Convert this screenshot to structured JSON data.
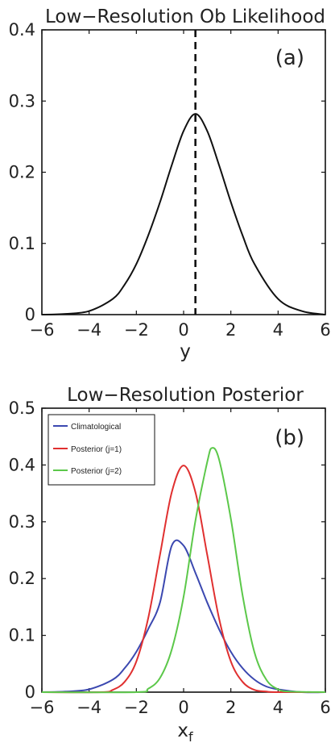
{
  "chart_data": [
    {
      "type": "line",
      "title": "Low−Resolution Ob Likelihood",
      "panel_label": "(a)",
      "xlabel": "y",
      "xlim": [
        -6,
        6
      ],
      "ylim": [
        0,
        0.4
      ],
      "x_ticks": [
        -6,
        -4,
        -2,
        0,
        2,
        4,
        6
      ],
      "y_ticks": [
        0,
        0.1,
        0.2,
        0.3,
        0.4
      ],
      "x_tick_labels": [
        "−6",
        "−4",
        "−2",
        "0",
        "2",
        "4",
        "6"
      ],
      "y_tick_labels": [
        "0",
        "0.1",
        "0.2",
        "0.3",
        "0.4"
      ],
      "grid": false,
      "series": [
        {
          "color": "#111111",
          "style": "solid",
          "x": [
            -6,
            -5,
            -4,
            -3,
            -2.5,
            -2,
            -1.5,
            -1,
            -0.5,
            0,
            0.5,
            1,
            1.5,
            2,
            2.5,
            3,
            4,
            5,
            6
          ],
          "y": [
            0,
            0.001,
            0.005,
            0.022,
            0.042,
            0.071,
            0.111,
            0.158,
            0.21,
            0.258,
            0.282,
            0.258,
            0.21,
            0.158,
            0.111,
            0.071,
            0.022,
            0.005,
            0
          ]
        }
      ],
      "vertical_line": {
        "x": 0.5,
        "color": "#111111",
        "style": "dashed"
      }
    },
    {
      "type": "line",
      "title": "Low−Resolution Posterior",
      "panel_label": "(b)",
      "xlabel": "x",
      "xlabel_sub": "f",
      "xlim": [
        -6,
        6
      ],
      "ylim": [
        0,
        0.5
      ],
      "x_ticks": [
        -6,
        -4,
        -2,
        0,
        2,
        4,
        6
      ],
      "y_ticks": [
        0,
        0.1,
        0.2,
        0.3,
        0.4,
        0.5
      ],
      "x_tick_labels": [
        "−6",
        "−4",
        "−2",
        "0",
        "2",
        "4",
        "6"
      ],
      "y_tick_labels": [
        "0",
        "0.1",
        "0.2",
        "0.3",
        "0.4",
        "0.5"
      ],
      "grid": false,
      "legend_position": "top-left",
      "series": [
        {
          "name": "Climatological",
          "color": "#3b48b0",
          "x": [
            -6,
            -5,
            -4,
            -3,
            -2.5,
            -2,
            -1.5,
            -1,
            -0.5,
            0,
            0.5,
            1,
            1.5,
            2,
            2.5,
            3,
            3.5,
            4,
            5,
            6
          ],
          "y": [
            0,
            0.001,
            0.005,
            0.022,
            0.042,
            0.071,
            0.111,
            0.158,
            0.258,
            0.258,
            0.21,
            0.158,
            0.111,
            0.071,
            0.042,
            0.022,
            0.01,
            0.005,
            0,
            0
          ]
        },
        {
          "name": "Posterior (j=1)",
          "color": "#e03030",
          "x": [
            -6,
            -3.5,
            -3,
            -2.5,
            -2,
            -1.5,
            -1,
            -0.5,
            0,
            0.5,
            1,
            1.5,
            2,
            2.5,
            3,
            3.5,
            4,
            6
          ],
          "y": [
            0,
            0,
            0.004,
            0.018,
            0.054,
            0.13,
            0.242,
            0.352,
            0.399,
            0.352,
            0.242,
            0.13,
            0.054,
            0.018,
            0.004,
            0.001,
            0,
            0
          ]
        },
        {
          "name": "Posterior (j=2)",
          "color": "#5cc84a",
          "x": [
            -6,
            -2,
            -1.5,
            -1,
            -0.5,
            0,
            0.5,
            1,
            1.2,
            1.5,
            2,
            2.5,
            3,
            3.5,
            4,
            4.5,
            6
          ],
          "y": [
            0,
            0,
            0.006,
            0.025,
            0.075,
            0.168,
            0.302,
            0.405,
            0.43,
            0.41,
            0.305,
            0.17,
            0.07,
            0.022,
            0.005,
            0.001,
            0
          ]
        }
      ]
    }
  ]
}
